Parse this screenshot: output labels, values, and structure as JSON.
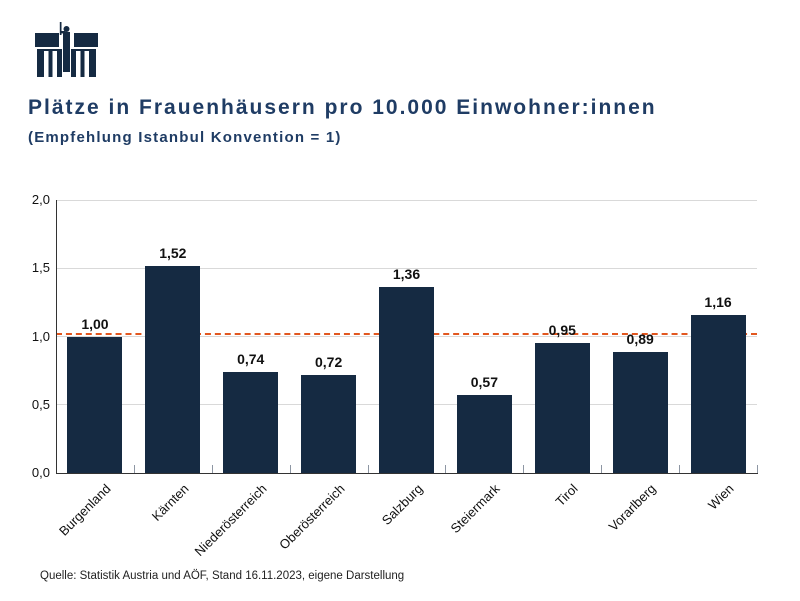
{
  "logo": {
    "name": "parliament-building-logo",
    "color": "#152a42"
  },
  "header": {
    "title": "Plätze in Frauenhäusern pro 10.000 Einwohner:innen",
    "subtitle": "(Empfehlung Istanbul Konvention = 1)"
  },
  "chart_data": {
    "type": "bar",
    "title": "Plätze in Frauenhäusern pro 10.000 Einwohner:innen",
    "subtitle": "(Empfehlung Istanbul Konvention = 1)",
    "categories": [
      "Burgenland",
      "Kärnten",
      "Niederösterreich",
      "Oberösterreich",
      "Salzburg",
      "Steiermark",
      "Tirol",
      "Vorarlberg",
      "Wien"
    ],
    "values": [
      1.0,
      1.52,
      0.74,
      0.72,
      1.36,
      0.57,
      0.95,
      0.89,
      1.16
    ],
    "value_labels": [
      "1,00",
      "1,52",
      "0,74",
      "0,72",
      "1,36",
      "0,57",
      "0,95",
      "0,89",
      "1,16"
    ],
    "xlabel": "",
    "ylabel": "",
    "ylim": [
      0,
      2
    ],
    "y_tick_step": 0.5,
    "y_tick_labels": [
      "0,0",
      "0,5",
      "1,0",
      "1,5",
      "2,0"
    ],
    "grid": true,
    "gridline_color": "#d9d9d9",
    "bar_color": "#152a42",
    "reference_line": {
      "value": 1,
      "color": "#e2571f",
      "style": "dashed"
    },
    "legend": "none"
  },
  "footer": {
    "source": "Quelle: Statistik Austria und AÖF, Stand 16.11.2023, eigene Darstellung"
  }
}
